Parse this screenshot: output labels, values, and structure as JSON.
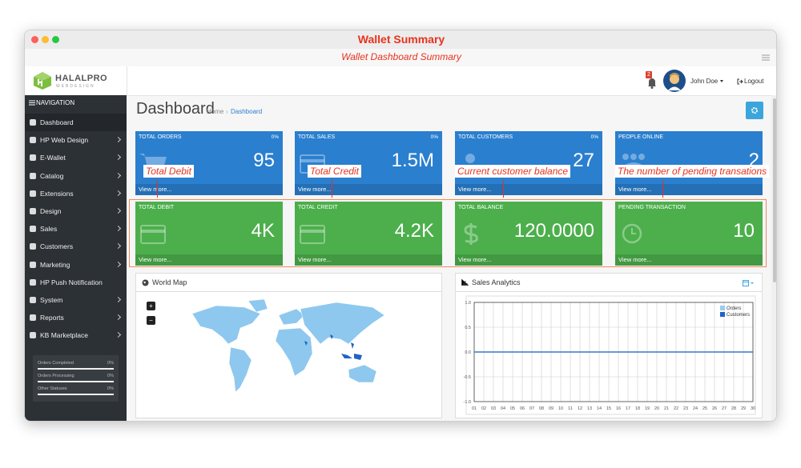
{
  "window": {
    "title": "Wallet Summary",
    "subtitle": "Wallet Dashboard Summary"
  },
  "header": {
    "logo": "HALALPRO",
    "logo_sub": "WEBDESIGN",
    "notifications": 2,
    "user": "John Doe",
    "logout": "Logout"
  },
  "sidebar": {
    "heading": "NAVIGATION",
    "items": [
      {
        "label": "Dashboard",
        "submenu": false
      },
      {
        "label": "HP Web Design",
        "submenu": true
      },
      {
        "label": "E-Wallet",
        "submenu": true
      },
      {
        "label": "Catalog",
        "submenu": true
      },
      {
        "label": "Extensions",
        "submenu": true
      },
      {
        "label": "Design",
        "submenu": true
      },
      {
        "label": "Sales",
        "submenu": true
      },
      {
        "label": "Customers",
        "submenu": true
      },
      {
        "label": "Marketing",
        "submenu": true
      },
      {
        "label": "HP Push Notification",
        "submenu": false
      },
      {
        "label": "System",
        "submenu": true
      },
      {
        "label": "Reports",
        "submenu": true
      },
      {
        "label": "KB Marketplace",
        "submenu": true
      }
    ],
    "statuses": [
      {
        "label": "Orders Completed",
        "value": "0%"
      },
      {
        "label": "Orders Processing",
        "value": "0%"
      },
      {
        "label": "Other Statuses",
        "value": "0%"
      }
    ]
  },
  "page": {
    "title": "Dashboard",
    "breadcrumb": [
      "Home",
      "Dashboard"
    ]
  },
  "tiles": [
    {
      "title": "TOTAL ORDERS",
      "change": "0%",
      "value": 95,
      "link": "View more...",
      "color": "#2a7fcf"
    },
    {
      "title": "TOTAL SALES",
      "change": "0%",
      "value": "1.5M",
      "link": "View more...",
      "color": "#2a7fcf"
    },
    {
      "title": "TOTAL CUSTOMERS",
      "change": "0%",
      "value": 27,
      "link": "View more...",
      "color": "#2a7fcf"
    },
    {
      "title": "PEOPLE ONLINE",
      "value": 2,
      "link": "View more...",
      "color": "#2a7fcf"
    },
    {
      "title": "TOTAL DEBIT",
      "value": "4K",
      "link": "View more...",
      "color": "#4caf4c"
    },
    {
      "title": "TOTAL CREDIT",
      "value": "4.2K",
      "link": "View more...",
      "color": "#4caf4c"
    },
    {
      "title": "TOTAL BALANCE",
      "value": "120.0000",
      "link": "View more...",
      "color": "#4caf4c"
    },
    {
      "title": "PENDING TRANSACTION",
      "value": 10,
      "link": "View more...",
      "color": "#4caf4c"
    }
  ],
  "annotations": [
    "Total Debit",
    "Total Credit",
    "Current customer balance",
    "The number of pending transations"
  ],
  "panels": {
    "map": {
      "title": "World Map",
      "zoom": [
        "+",
        "−"
      ]
    },
    "sales": {
      "title": "Sales Analytics",
      "chart_data": {
        "type": "line",
        "categories": [
          "01",
          "02",
          "03",
          "04",
          "05",
          "06",
          "07",
          "08",
          "09",
          "10",
          "11",
          "12",
          "13",
          "14",
          "15",
          "16",
          "17",
          "18",
          "19",
          "20",
          "21",
          "22",
          "23",
          "24",
          "25",
          "26",
          "27",
          "28",
          "29",
          "30"
        ],
        "series": [
          {
            "name": "Orders",
            "color": "#9ccbef",
            "values": [
              0,
              0,
              0,
              0,
              0,
              0,
              0,
              0,
              0,
              0,
              0,
              0,
              0,
              0,
              0,
              0,
              0,
              0,
              0,
              0,
              0,
              0,
              0,
              0,
              0,
              0,
              0,
              0,
              0,
              0
            ]
          },
          {
            "name": "Customers",
            "color": "#1f63c6",
            "values": [
              0,
              0,
              0,
              0,
              0,
              0,
              0,
              0,
              0,
              0,
              0,
              0,
              0,
              0,
              0,
              0,
              0,
              0,
              0,
              0,
              0,
              0,
              0,
              0,
              0,
              0,
              0,
              0,
              0,
              0
            ]
          }
        ],
        "ylim": [
          -1,
          1
        ],
        "yticks": [
          {
            "value": -1,
            "label": "-1.0"
          },
          -0.5,
          {
            "value": 0,
            "label": "0.0"
          },
          0.5,
          {
            "value": 1,
            "label": "1.0"
          }
        ],
        "grid": true
      }
    }
  }
}
